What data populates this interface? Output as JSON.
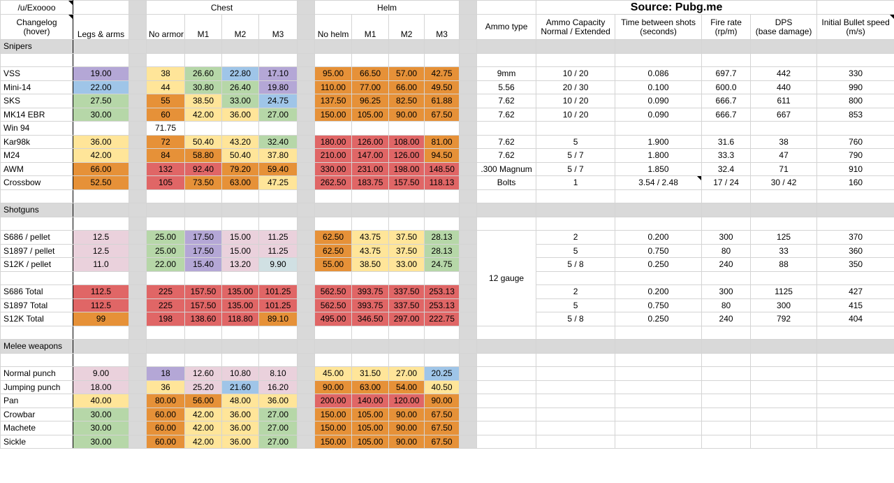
{
  "header": {
    "user": "/u/Exoooo",
    "changelog": "Changelog\n(hover)",
    "chest": "Chest",
    "helm": "Helm",
    "source": "Source: Pubg.me",
    "legs_arms": "Legs & arms",
    "no_armor": "No armor",
    "m1": "M1",
    "m2": "M2",
    "m3": "M3",
    "no_helm": "No helm",
    "ammo_type": "Ammo type",
    "ammo_capacity": "Ammo Capacity\nNormal / Extended",
    "time_between": "Time between shots\n(seconds)",
    "fire_rate": "Fire rate\n(rp/m)",
    "dps": "DPS\n(base damage)",
    "bullet_speed": "Initial Bullet speed\n(m/s)"
  },
  "sections": {
    "snipers": "Snipers",
    "shotguns": "Shotguns",
    "melee": "Melee weapons"
  },
  "shotgun_ammo": "12 gauge",
  "snipers": [
    {
      "name": "VSS",
      "legs": "19.00",
      "chest": [
        "38",
        "26.60",
        "22.80",
        "17.10"
      ],
      "helm": [
        "95.00",
        "66.50",
        "57.00",
        "42.75"
      ],
      "ammo": "9mm",
      "cap": "10 / 20",
      "time": "0.086",
      "rate": "697.7",
      "dps": "442",
      "speed": "330"
    },
    {
      "name": "Mini-14",
      "legs": "22.00",
      "chest": [
        "44",
        "30.80",
        "26.40",
        "19.80"
      ],
      "helm": [
        "110.00",
        "77.00",
        "66.00",
        "49.50"
      ],
      "ammo": "5.56",
      "cap": "20 / 30",
      "time": "0.100",
      "rate": "600.0",
      "dps": "440",
      "speed": "990"
    },
    {
      "name": "SKS",
      "legs": "27.50",
      "chest": [
        "55",
        "38.50",
        "33.00",
        "24.75"
      ],
      "helm": [
        "137.50",
        "96.25",
        "82.50",
        "61.88"
      ],
      "ammo": "7.62",
      "cap": "10 / 20",
      "time": "0.090",
      "rate": "666.7",
      "dps": "611",
      "speed": "800"
    },
    {
      "name": "MK14 EBR",
      "legs": "30.00",
      "chest": [
        "60",
        "42.00",
        "36.00",
        "27.00"
      ],
      "helm": [
        "150.00",
        "105.00",
        "90.00",
        "67.50"
      ],
      "ammo": "7.62",
      "cap": "10 / 20",
      "time": "0.090",
      "rate": "666.7",
      "dps": "667",
      "speed": "853"
    },
    {
      "name": "Win 94",
      "legs": "",
      "chest": [
        "71.75",
        "",
        "",
        ""
      ],
      "helm": [
        "",
        "",
        "",
        ""
      ],
      "ammo": "",
      "cap": "",
      "time": "",
      "rate": "",
      "dps": "",
      "speed": ""
    },
    {
      "name": "Kar98k",
      "legs": "36.00",
      "chest": [
        "72",
        "50.40",
        "43.20",
        "32.40"
      ],
      "helm": [
        "180.00",
        "126.00",
        "108.00",
        "81.00"
      ],
      "ammo": "7.62",
      "cap": "5",
      "time": "1.900",
      "rate": "31.6",
      "dps": "38",
      "speed": "760"
    },
    {
      "name": "M24",
      "legs": "42.00",
      "chest": [
        "84",
        "58.80",
        "50.40",
        "37.80"
      ],
      "helm": [
        "210.00",
        "147.00",
        "126.00",
        "94.50"
      ],
      "ammo": "7.62",
      "cap": "5 / 7",
      "time": "1.800",
      "rate": "33.3",
      "dps": "47",
      "speed": "790"
    },
    {
      "name": "AWM",
      "legs": "66.00",
      "chest": [
        "132",
        "92.40",
        "79.20",
        "59.40"
      ],
      "helm": [
        "330.00",
        "231.00",
        "198.00",
        "148.50"
      ],
      "ammo": ".300 Magnum",
      "cap": "5 / 7",
      "time": "1.850",
      "rate": "32.4",
      "dps": "71",
      "speed": "910"
    },
    {
      "name": "Crossbow",
      "legs": "52.50",
      "chest": [
        "105",
        "73.50",
        "63.00",
        "47.25"
      ],
      "helm": [
        "262.50",
        "183.75",
        "157.50",
        "118.13"
      ],
      "ammo": "Bolts",
      "cap": "1",
      "time": "3.54 / 2.48",
      "rate": "17 / 24",
      "dps": "30 / 42",
      "speed": "160"
    }
  ],
  "shotguns_pellet": [
    {
      "name": "S686 / pellet",
      "legs": "12.5",
      "chest": [
        "25.00",
        "17.50",
        "15.00",
        "11.25"
      ],
      "helm": [
        "62.50",
        "43.75",
        "37.50",
        "28.13"
      ],
      "cap": "2",
      "time": "0.200",
      "rate": "300",
      "dps": "125",
      "speed": "370"
    },
    {
      "name": "S1897 / pellet",
      "legs": "12.5",
      "chest": [
        "25.00",
        "17.50",
        "15.00",
        "11.25"
      ],
      "helm": [
        "62.50",
        "43.75",
        "37.50",
        "28.13"
      ],
      "cap": "5",
      "time": "0.750",
      "rate": "80",
      "dps": "33",
      "speed": "360"
    },
    {
      "name": "S12K  / pellet",
      "legs": "11.0",
      "chest": [
        "22.00",
        "15.40",
        "13.20",
        "9.90"
      ],
      "helm": [
        "55.00",
        "38.50",
        "33.00",
        "24.75"
      ],
      "cap": "5 / 8",
      "time": "0.250",
      "rate": "240",
      "dps": "88",
      "speed": "350"
    }
  ],
  "shotguns_total": [
    {
      "name": "S686 Total",
      "legs": "112.5",
      "chest": [
        "225",
        "157.50",
        "135.00",
        "101.25"
      ],
      "helm": [
        "562.50",
        "393.75",
        "337.50",
        "253.13"
      ],
      "cap": "2",
      "time": "0.200",
      "rate": "300",
      "dps": "1125",
      "speed": "427"
    },
    {
      "name": "S1897 Total",
      "legs": "112.5",
      "chest": [
        "225",
        "157.50",
        "135.00",
        "101.25"
      ],
      "helm": [
        "562.50",
        "393.75",
        "337.50",
        "253.13"
      ],
      "cap": "5",
      "time": "0.750",
      "rate": "80",
      "dps": "300",
      "speed": "415"
    },
    {
      "name": "S12K Total",
      "legs": "99",
      "chest": [
        "198",
        "138.60",
        "118.80",
        "89.10"
      ],
      "helm": [
        "495.00",
        "346.50",
        "297.00",
        "222.75"
      ],
      "cap": "5 / 8",
      "time": "0.250",
      "rate": "240",
      "dps": "792",
      "speed": "404"
    }
  ],
  "melee": [
    {
      "name": "Normal punch",
      "legs": "9.00",
      "chest": [
        "18",
        "12.60",
        "10.80",
        "8.10"
      ],
      "helm": [
        "45.00",
        "31.50",
        "27.00",
        "20.25"
      ]
    },
    {
      "name": "Jumping punch",
      "legs": "18.00",
      "chest": [
        "36",
        "25.20",
        "21.60",
        "16.20"
      ],
      "helm": [
        "90.00",
        "63.00",
        "54.00",
        "40.50"
      ]
    },
    {
      "name": "Pan",
      "legs": "40.00",
      "chest": [
        "80.00",
        "56.00",
        "48.00",
        "36.00"
      ],
      "helm": [
        "200.00",
        "140.00",
        "120.00",
        "90.00"
      ]
    },
    {
      "name": "Crowbar",
      "legs": "30.00",
      "chest": [
        "60.00",
        "42.00",
        "36.00",
        "27.00"
      ],
      "helm": [
        "150.00",
        "105.00",
        "90.00",
        "67.50"
      ]
    },
    {
      "name": "Machete",
      "legs": "30.00",
      "chest": [
        "60.00",
        "42.00",
        "36.00",
        "27.00"
      ],
      "helm": [
        "150.00",
        "105.00",
        "90.00",
        "67.50"
      ]
    },
    {
      "name": "Sickle",
      "legs": "30.00",
      "chest": [
        "60.00",
        "42.00",
        "36.00",
        "27.00"
      ],
      "helm": [
        "150.00",
        "105.00",
        "90.00",
        "67.50"
      ]
    }
  ],
  "colors": {
    "purple": "#b4a7d6",
    "blue": "#9fc5e8",
    "green": "#b6d7a8",
    "yellow": "#ffe599",
    "orange": "#e69138",
    "red": "#e06666",
    "pink": "#ead1dc",
    "light_blue": "#d0e0e3",
    "separator_gray": "#d9d9d9"
  }
}
